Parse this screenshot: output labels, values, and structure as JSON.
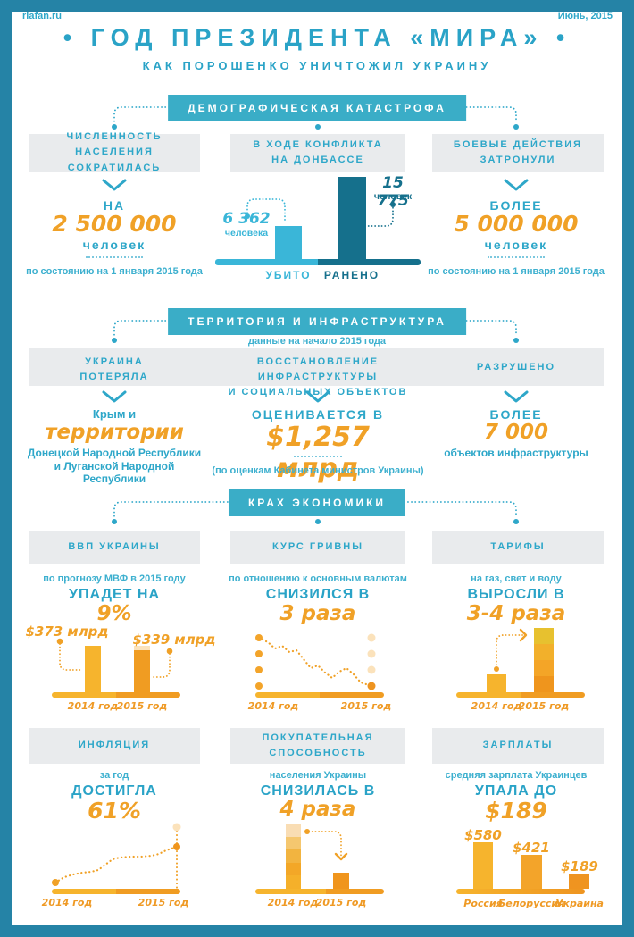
{
  "meta": {
    "site": "riafan.ru",
    "date": "Июнь, 2015"
  },
  "header": {
    "title": "• ГОД ПРЕЗИДЕНТА «МИРА» •",
    "subtitle": "КАК ПОРОШЕНКО УНИЧТОЖИЛ УКРАИНУ"
  },
  "colors": {
    "frame": "#2583a6",
    "banner": "#3aadc7",
    "teal": "#2ea7c9",
    "teal_dark": "#15708c",
    "blue_light": "#3ab6d8",
    "orange": "#f0a127",
    "yellow": "#f6b42d",
    "orange_deep": "#ef951d",
    "cream": "#fbe3bd",
    "box_gray": "#e9ebed"
  },
  "demography": {
    "banner": "ДЕМОГРАФИЧЕСКАЯ КАТАСТРОФА",
    "population": {
      "h1": "ЧИСЛЕННОСТЬ НАСЕЛЕНИЯ",
      "h2": "СОКРАТИЛАСЬ",
      "prefix": "НА",
      "value": "2 500 000",
      "unit": "человек",
      "footnote": "по состоянию на 1 января 2015 года"
    },
    "conflict": {
      "h1": "В ХОДЕ КОНФЛИКТА",
      "h2": "НА ДОНБАССЕ"
    },
    "affected": {
      "h1": "БОЕВЫЕ ДЕЙСТВИЯ",
      "h2": "ЗАТРОНУЛИ",
      "prefix": "БОЛЕЕ",
      "value": "5 000 000",
      "unit": "человек",
      "footnote": "по состоянию на 1 января 2015 года"
    }
  },
  "territory": {
    "banner": "ТЕРРИТОРИЯ И ИНФРАСТРУКТУРА",
    "subtitle": "данные на начало 2015 года",
    "lost": {
      "h1": "УКРАИНА",
      "h2": "ПОТЕРЯЛА",
      "line1": "Крым и",
      "value": "территории",
      "line2": "Донецкой Народной Республики",
      "line3": "и Луганской Народной Республики"
    },
    "restoration": {
      "h1": "ВОССТАНОВЛЕНИЕ ИНФРАСТРУКТУРЫ",
      "h2": "И СОЦИАЛЬНЫХ ОБЪЕКТОВ",
      "prefix": "ОЦЕНИВАЕТСЯ В",
      "value": "$1,257 млрд",
      "footnote": "(по оценкам Кабинета министров Украины)"
    },
    "destroyed": {
      "h1": "РАЗРУШЕНО",
      "prefix": "БОЛЕЕ",
      "value": "7 000",
      "unit": "объектов инфраструктуры"
    }
  },
  "economy": {
    "banner": "КРАХ ЭКОНОМИКИ",
    "gdp": {
      "header": "ВВП УКРАИНЫ",
      "subtitle": "по прогнозу МВФ в 2015 году",
      "action": "УПАДЕТ НА",
      "value": "9%"
    },
    "hryvnia": {
      "header": "КУРС ГРИВНЫ",
      "subtitle": "по отношению к основным валютам",
      "action": "СНИЗИЛСЯ В",
      "value": "3 раза"
    },
    "tariffs": {
      "header": "ТАРИФЫ",
      "subtitle": "на газ, свет и воду",
      "action": "ВЫРОСЛИ В",
      "value": "3-4 раза"
    },
    "inflation": {
      "header": "ИНФЛЯЦИЯ",
      "subtitle": "за год",
      "action": "ДОСТИГЛА",
      "value": "61%"
    },
    "purchasing": {
      "h1": "ПОКУПАТЕЛЬНАЯ",
      "h2": "СПОСОБНОСТЬ",
      "subtitle": "населения Украины",
      "action": "СНИЗИЛАСЬ В",
      "value": "4 раза"
    },
    "salaries": {
      "header": "ЗАРПЛАТЫ",
      "subtitle": "средняя зарплата Украинцев",
      "action": "УПАЛА ДО",
      "value": "$189"
    }
  },
  "chart_data": [
    {
      "id": "casualties",
      "type": "bar",
      "title": "В ходе конфликта на Донбассе",
      "categories": [
        "УБИТО",
        "РАНЕНО"
      ],
      "values": [
        6362,
        15775
      ],
      "value_labels": [
        "6 362",
        "15 775"
      ],
      "unit_labels": [
        "человека",
        "человек"
      ],
      "colors": [
        "#3ab6d8",
        "#15708c"
      ]
    },
    {
      "id": "gdp",
      "type": "bar",
      "title": "ВВП Украины, $ млрд",
      "categories": [
        "2014 год",
        "2015 год"
      ],
      "values": [
        373,
        339
      ],
      "value_labels": [
        "$373 млрд",
        "$339 млрд"
      ],
      "colors": [
        "#f6b42d",
        "#f09c22"
      ]
    },
    {
      "id": "hryvnia",
      "type": "line",
      "title": "Курс гривны к основным валютам",
      "categories": [
        "2014 год",
        "2015 год"
      ],
      "trend": "снизился в 3 раза",
      "points": [
        [
          32,
          16
        ],
        [
          42,
          21
        ],
        [
          50,
          28
        ],
        [
          58,
          25
        ],
        [
          66,
          32
        ],
        [
          74,
          30
        ],
        [
          82,
          40
        ],
        [
          90,
          50
        ],
        [
          98,
          47
        ],
        [
          106,
          55
        ],
        [
          114,
          61
        ],
        [
          122,
          54
        ],
        [
          130,
          50
        ],
        [
          138,
          57
        ],
        [
          146,
          66
        ],
        [
          158,
          70
        ]
      ]
    },
    {
      "id": "tariffs",
      "type": "bar",
      "title": "Тарифы на газ, свет и воду",
      "categories": [
        "2014 год",
        "2015 год"
      ],
      "values": [
        1,
        3.6
      ],
      "note": "выросли в 3-4 раза",
      "colors": [
        "#f6b42d",
        null
      ],
      "stack_colors": [
        "#ef951d",
        "#f4a527",
        "#f2b02b",
        "#e7c12f"
      ]
    },
    {
      "id": "inflation",
      "type": "line",
      "title": "Инфляция за год",
      "categories": [
        "2014 год",
        "2015 год"
      ],
      "trend": "достигла 61%",
      "points": [
        [
          32,
          70
        ],
        [
          42,
          64
        ],
        [
          52,
          61
        ],
        [
          62,
          59
        ],
        [
          72,
          58
        ],
        [
          80,
          56
        ],
        [
          88,
          50
        ],
        [
          96,
          44
        ],
        [
          104,
          42
        ],
        [
          116,
          41
        ],
        [
          128,
          41
        ],
        [
          140,
          40
        ],
        [
          148,
          38
        ],
        [
          156,
          34
        ],
        [
          162,
          32
        ],
        [
          168,
          30
        ]
      ]
    },
    {
      "id": "purchasing",
      "type": "bar",
      "title": "Покупательная способность населения Украины",
      "categories": [
        "2014 год",
        "2015 год"
      ],
      "values": [
        4,
        1
      ],
      "note": "снизилась в 4 раза",
      "colors": [
        null,
        "#f0951d"
      ],
      "stack_colors": [
        "#f5b02a",
        "#f3a727",
        "#f2b440",
        "#f5c76f",
        "#f9ddb4"
      ]
    },
    {
      "id": "salaries",
      "type": "bar",
      "title": "Средняя зарплата",
      "categories": [
        "Россия",
        "Белоруссия",
        "Украина"
      ],
      "values": [
        580,
        421,
        189
      ],
      "value_labels": [
        "$580",
        "$421",
        "$189"
      ],
      "colors": [
        "#f6b42d",
        "#f3a42a",
        "#ef9420"
      ]
    }
  ]
}
